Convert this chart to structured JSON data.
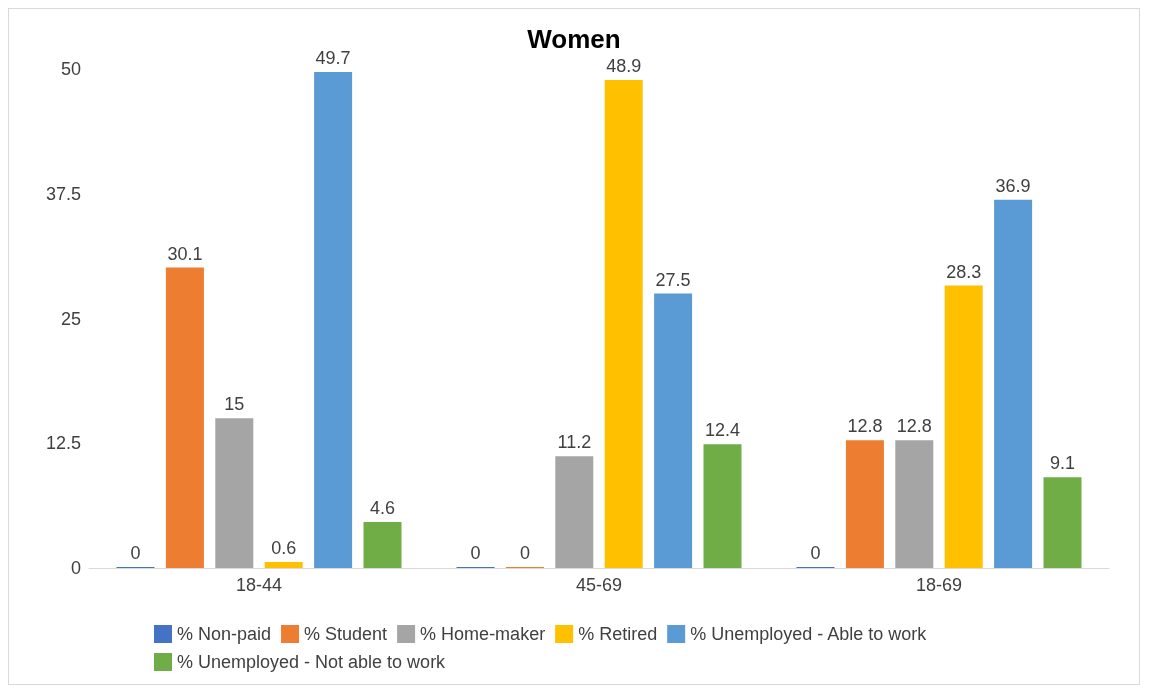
{
  "chart_data": {
    "type": "bar",
    "title": "Women",
    "categories": [
      "18-44",
      "45-69",
      "18-69"
    ],
    "series": [
      {
        "name": "% Non-paid",
        "color": "#4472c4",
        "values": [
          0,
          0,
          0
        ]
      },
      {
        "name": "% Student",
        "color": "#ed7d31",
        "values": [
          30.1,
          0,
          12.8
        ]
      },
      {
        "name": "% Home-maker",
        "color": "#a5a5a5",
        "values": [
          15,
          11.2,
          12.8
        ]
      },
      {
        "name": "% Retired",
        "color": "#ffc000",
        "values": [
          0.6,
          48.9,
          28.3
        ]
      },
      {
        "name": "% Unemployed - Able to work",
        "color": "#5b9bd5",
        "values": [
          49.7,
          27.5,
          36.9
        ]
      },
      {
        "name": "% Unemployed - Not able to work",
        "color": "#70ad47",
        "values": [
          4.6,
          12.4,
          9.1
        ]
      }
    ],
    "ylim": [
      0,
      50
    ],
    "yticks": [
      0,
      12.5,
      25,
      37.5,
      50
    ],
    "grid": false,
    "legend": "bottom",
    "data_labels": true
  }
}
